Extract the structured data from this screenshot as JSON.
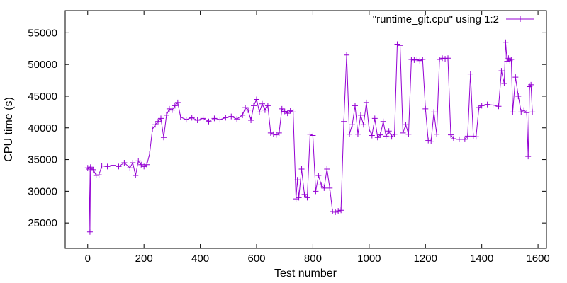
{
  "chart_data": {
    "type": "line",
    "title": "",
    "xlabel": "Test number",
    "ylabel": "CPU time (s)",
    "xlim": [
      -80,
      1630
    ],
    "ylim": [
      21000,
      58500
    ],
    "x_ticks": [
      0,
      200,
      400,
      600,
      800,
      1000,
      1200,
      1400,
      1600
    ],
    "y_ticks": [
      25000,
      30000,
      35000,
      40000,
      45000,
      50000,
      55000
    ],
    "grid": false,
    "legend": "top-right",
    "series": [
      {
        "name": "\"runtime_git.cpu\" using 1:2",
        "color": "#9400d3",
        "marker": "plus",
        "points": [
          [
            0,
            33700
          ],
          [
            5,
            33500
          ],
          [
            8,
            23600
          ],
          [
            10,
            33800
          ],
          [
            20,
            33400
          ],
          [
            30,
            32500
          ],
          [
            40,
            32600
          ],
          [
            50,
            34000
          ],
          [
            70,
            33900
          ],
          [
            90,
            34100
          ],
          [
            110,
            33900
          ],
          [
            130,
            34500
          ],
          [
            150,
            33700
          ],
          [
            160,
            34500
          ],
          [
            170,
            32500
          ],
          [
            180,
            34800
          ],
          [
            190,
            34200
          ],
          [
            200,
            33900
          ],
          [
            210,
            34200
          ],
          [
            220,
            35900
          ],
          [
            230,
            39800
          ],
          [
            240,
            40500
          ],
          [
            250,
            41000
          ],
          [
            260,
            41500
          ],
          [
            270,
            38500
          ],
          [
            280,
            42000
          ],
          [
            290,
            43000
          ],
          [
            300,
            42800
          ],
          [
            310,
            43500
          ],
          [
            320,
            44000
          ],
          [
            330,
            41700
          ],
          [
            350,
            41300
          ],
          [
            370,
            41600
          ],
          [
            390,
            41200
          ],
          [
            410,
            41500
          ],
          [
            430,
            41000
          ],
          [
            450,
            41500
          ],
          [
            470,
            41300
          ],
          [
            490,
            41600
          ],
          [
            510,
            41800
          ],
          [
            530,
            41400
          ],
          [
            550,
            42000
          ],
          [
            560,
            43200
          ],
          [
            570,
            42800
          ],
          [
            580,
            41200
          ],
          [
            590,
            43500
          ],
          [
            600,
            44500
          ],
          [
            610,
            42500
          ],
          [
            620,
            43800
          ],
          [
            630,
            42800
          ],
          [
            640,
            43500
          ],
          [
            650,
            39200
          ],
          [
            660,
            39000
          ],
          [
            670,
            38900
          ],
          [
            680,
            39200
          ],
          [
            690,
            43000
          ],
          [
            700,
            42600
          ],
          [
            710,
            42300
          ],
          [
            720,
            42700
          ],
          [
            730,
            42500
          ],
          [
            740,
            28800
          ],
          [
            745,
            31800
          ],
          [
            750,
            29000
          ],
          [
            760,
            33500
          ],
          [
            770,
            29500
          ],
          [
            780,
            29000
          ],
          [
            790,
            39000
          ],
          [
            800,
            38800
          ],
          [
            810,
            30000
          ],
          [
            820,
            32500
          ],
          [
            830,
            31000
          ],
          [
            840,
            30500
          ],
          [
            850,
            33500
          ],
          [
            860,
            30500
          ],
          [
            870,
            26800
          ],
          [
            880,
            26700
          ],
          [
            890,
            26900
          ],
          [
            900,
            27000
          ],
          [
            910,
            41000
          ],
          [
            920,
            51500
          ],
          [
            930,
            39000
          ],
          [
            940,
            40500
          ],
          [
            950,
            43500
          ],
          [
            960,
            39000
          ],
          [
            970,
            42000
          ],
          [
            980,
            40500
          ],
          [
            990,
            44000
          ],
          [
            1000,
            39800
          ],
          [
            1010,
            38800
          ],
          [
            1020,
            41500
          ],
          [
            1030,
            38500
          ],
          [
            1040,
            38900
          ],
          [
            1050,
            41000
          ],
          [
            1060,
            38700
          ],
          [
            1070,
            39500
          ],
          [
            1080,
            38600
          ],
          [
            1090,
            39000
          ],
          [
            1100,
            53200
          ],
          [
            1110,
            53000
          ],
          [
            1120,
            39200
          ],
          [
            1130,
            40500
          ],
          [
            1140,
            39000
          ],
          [
            1150,
            50800
          ],
          [
            1160,
            50700
          ],
          [
            1170,
            50800
          ],
          [
            1180,
            50600
          ],
          [
            1190,
            50800
          ],
          [
            1200,
            43000
          ],
          [
            1210,
            38000
          ],
          [
            1220,
            37900
          ],
          [
            1230,
            42500
          ],
          [
            1240,
            39000
          ],
          [
            1250,
            50800
          ],
          [
            1260,
            51000
          ],
          [
            1270,
            50900
          ],
          [
            1280,
            51000
          ],
          [
            1290,
            38900
          ],
          [
            1300,
            38300
          ],
          [
            1320,
            38200
          ],
          [
            1340,
            38200
          ],
          [
            1350,
            38700
          ],
          [
            1360,
            48500
          ],
          [
            1370,
            38700
          ],
          [
            1380,
            38600
          ],
          [
            1390,
            43200
          ],
          [
            1400,
            43500
          ],
          [
            1420,
            43700
          ],
          [
            1440,
            43600
          ],
          [
            1460,
            43400
          ],
          [
            1470,
            49000
          ],
          [
            1480,
            47000
          ],
          [
            1485,
            53500
          ],
          [
            1490,
            50500
          ],
          [
            1495,
            51000
          ],
          [
            1500,
            50600
          ],
          [
            1505,
            50800
          ],
          [
            1510,
            42500
          ],
          [
            1520,
            48000
          ],
          [
            1530,
            45000
          ],
          [
            1540,
            42500
          ],
          [
            1550,
            42800
          ],
          [
            1560,
            42400
          ],
          [
            1565,
            35500
          ],
          [
            1570,
            46500
          ],
          [
            1575,
            46800
          ],
          [
            1580,
            42500
          ]
        ]
      }
    ]
  }
}
